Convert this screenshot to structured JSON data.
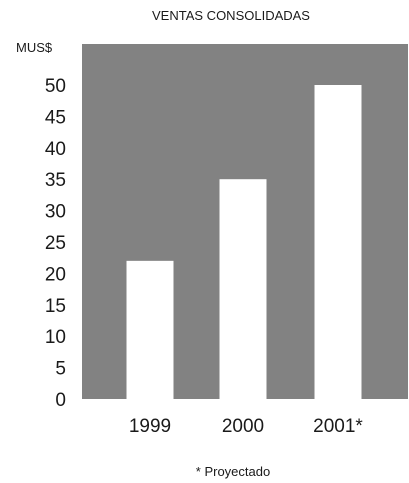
{
  "chart_data": {
    "type": "bar",
    "title": "VENTAS CONSOLIDADAS",
    "ylabel": "MUS$",
    "xlabel": "",
    "categories": [
      "1999",
      "2000",
      "2001*"
    ],
    "values": [
      22,
      35,
      50
    ],
    "ylim": [
      0,
      50
    ],
    "yticks": [
      "0",
      "5",
      "10",
      "15",
      "20",
      "25",
      "30",
      "35",
      "40",
      "45",
      "50"
    ],
    "grid": false,
    "legend": "none",
    "footnote": "* Proyectado",
    "colors": {
      "plot_background": "#828282",
      "bar": "#ffffff",
      "text": "#1a1a1a"
    }
  }
}
